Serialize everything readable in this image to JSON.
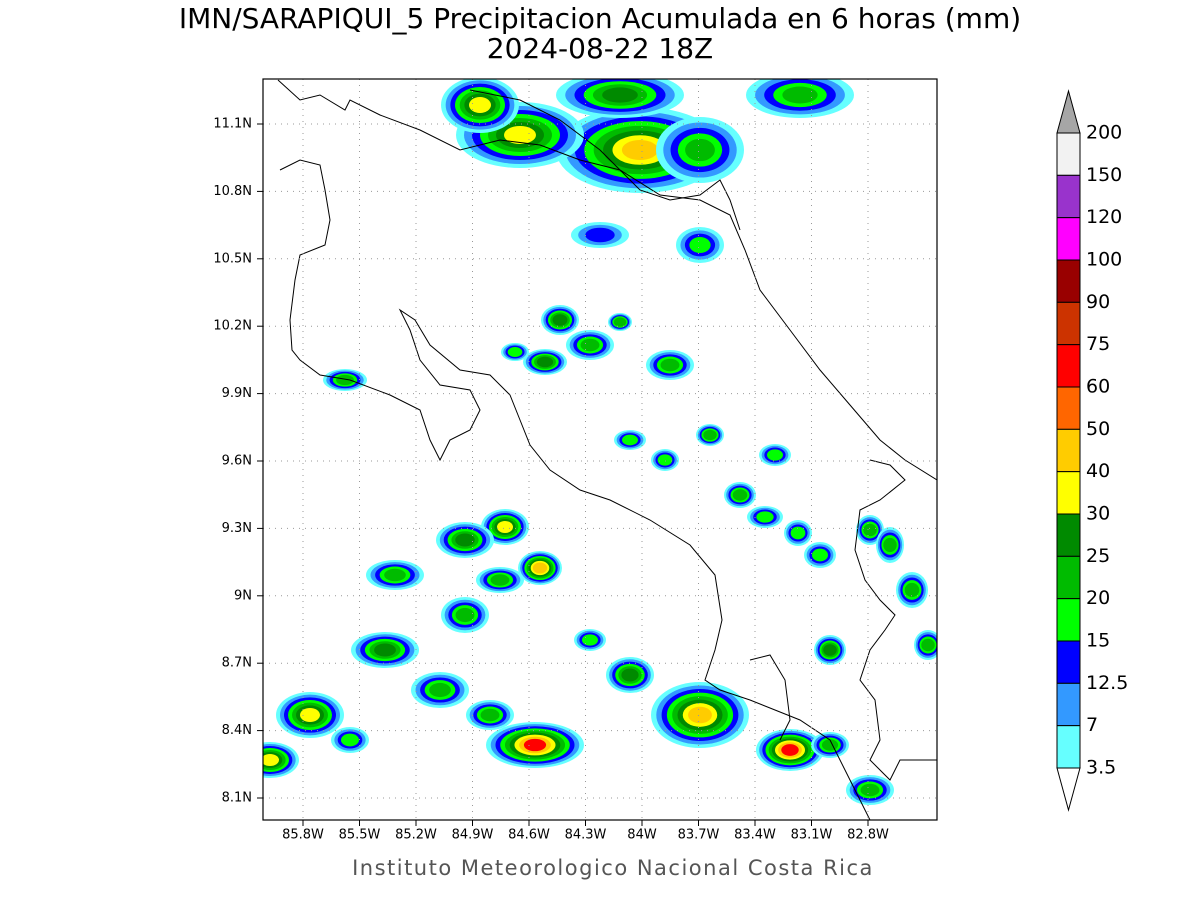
{
  "title": "IMN/SARAPIQUI_5 Precipitacion Acumulada en 6 horas (mm)",
  "subtitle": "2024-08-22 18Z",
  "map": {
    "lat_labels": [
      "11.1N",
      "10.8N",
      "10.5N",
      "10.2N",
      "9.9N",
      "9.6N",
      "9.3N",
      "9N",
      "8.7N",
      "8.4N",
      "8.1N"
    ],
    "lon_labels": [
      "85.8W",
      "85.5W",
      "85.2W",
      "84.9W",
      "84.6W",
      "84.3W",
      "84W",
      "83.7W",
      "83.4W",
      "83.1W",
      "82.8W"
    ]
  },
  "colorbar": {
    "labels": [
      "200",
      "150",
      "120",
      "100",
      "90",
      "75",
      "60",
      "50",
      "40",
      "30",
      "25",
      "20",
      "15",
      "12.5",
      "7",
      "3.5"
    ],
    "colors": [
      "#f2f2f2",
      "#9933cc",
      "#ff00ff",
      "#990000",
      "#cc3300",
      "#ff0000",
      "#ff6600",
      "#ffcc00",
      "#ffff00",
      "#008a00",
      "#00bb00",
      "#00ff00",
      "#0000ff",
      "#3399ff",
      "#66ffff"
    ],
    "over_color": "#a6a6a6",
    "under_color": "#ffffff"
  },
  "footer": "Instituto Meteorologico Nacional Costa Rica"
}
